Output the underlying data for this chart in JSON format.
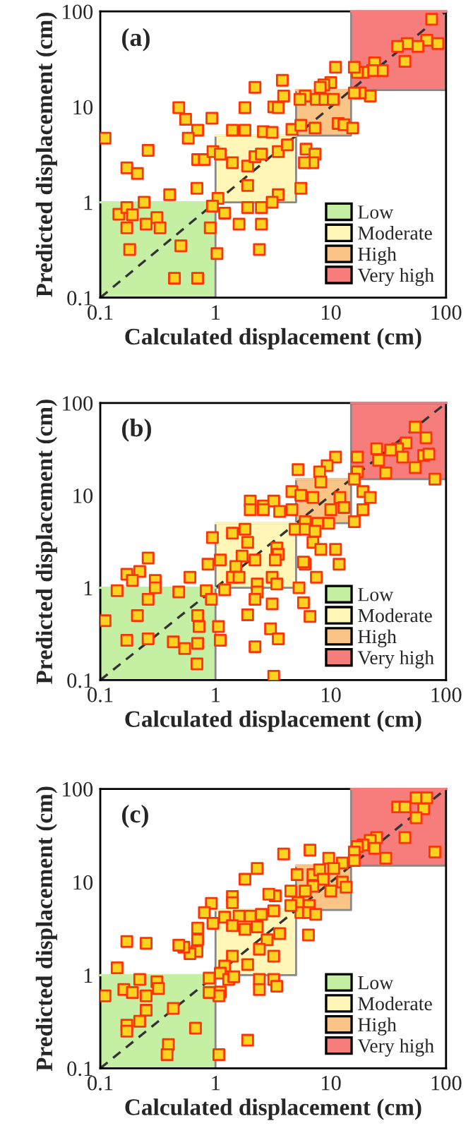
{
  "chart_data": [
    {
      "type": "scatter",
      "xlabel": "Calculated displacement (cm)",
      "ylabel": "Predicted displacement (cm)",
      "annotations": [
        "(a)"
      ],
      "log": "xy",
      "xlim": [
        0.1,
        100
      ],
      "ylim": [
        0.1,
        100
      ],
      "xticks": [
        0.1,
        1,
        10,
        100
      ],
      "yticks": [
        0.1,
        1,
        10,
        100
      ],
      "grid": false,
      "legend": "bottom right",
      "marker": "square",
      "series": [
        {
          "color": "#ffd21f",
          "x": [
            75,
            85,
            68,
            57,
            46,
            38,
            44,
            24,
            28,
            23,
            19,
            17,
            16,
            22,
            18,
            16,
            11,
            10,
            8.7,
            8.1,
            6,
            5.4,
            7.5,
            8.9,
            10.5,
            3.8,
            2.2,
            3.9,
            3.2,
            3.5,
            1.8,
            0.48,
            0.93,
            0.55,
            0.7,
            0.58,
            0.11,
            0.26,
            0.17,
            0.21,
            0.4,
            0.24,
            0.69,
            0.7,
            0.8,
            0.95,
            1.1,
            1.4,
            1.8,
            2.6,
            3.1,
            4.6,
            5.5,
            7.3,
            11.6,
            13,
            15.5,
            1.4,
            1.9,
            2.2,
            2.5,
            3.5,
            4.2,
            6.1,
            7.3,
            7,
            5.5,
            3.5,
            1.9,
            1.05,
            1.2,
            1.9,
            2.5,
            3.1,
            1.6,
            2.5,
            2.4,
            1.03,
            5.9,
            0.145,
            0.17,
            0.19,
            0.31,
            0.25,
            0.33,
            0.17,
            0.5,
            0.9,
            0.94,
            0.18,
            0.44,
            0.7
          ],
          "values": [
            83,
            46,
            50,
            43,
            46,
            43,
            30,
            29,
            24,
            24,
            23,
            23,
            26,
            13,
            14,
            14,
            26,
            18,
            17,
            16,
            13,
            12,
            12,
            12,
            12,
            19,
            16,
            13,
            10,
            9.8,
            9.8,
            9.8,
            7.6,
            7.4,
            5.7,
            4.7,
            4.7,
            3.5,
            2.3,
            2,
            1.2,
            1,
            1.4,
            2.8,
            2.8,
            3.4,
            3.2,
            5.7,
            5.7,
            5.5,
            5.4,
            5.8,
            6.4,
            6,
            6.7,
            6.5,
            6,
            2.6,
            2.4,
            3,
            3.2,
            3.4,
            4,
            3.6,
            3.2,
            2.6,
            1.4,
            1.2,
            1.5,
            1.1,
            0.77,
            0.88,
            0.88,
            1,
            0.59,
            0.59,
            0.32,
            0.29,
            2.6,
            0.75,
            0.88,
            0.74,
            0.69,
            0.59,
            0.54,
            0.54,
            0.35,
            0.54,
            0.91,
            0.32,
            0.16,
            0.16
          ]
        },
        {
          "type": "line",
          "name": "Low",
          "color": "#c5f0a4",
          "marker": "none",
          "x": [
            0.1,
            1
          ],
          "lower": [
            0.1,
            0.1
          ],
          "upper": [
            1,
            1
          ],
          "values": [
            1,
            1
          ]
        },
        {
          "type": "line",
          "name": "Moderate",
          "color": "#fff6b8",
          "marker": "none",
          "x": [
            1,
            5
          ],
          "lower": [
            1,
            1
          ],
          "upper": [
            5,
            5
          ],
          "values": [
            5,
            5
          ]
        },
        {
          "type": "line",
          "name": "High",
          "color": "#f9c486",
          "marker": "none",
          "x": [
            5,
            15
          ],
          "lower": [
            5,
            5
          ],
          "upper": [
            15,
            15
          ],
          "values": [
            15,
            15
          ]
        },
        {
          "type": "line",
          "name": "Very high",
          "color": "#f77d7d",
          "marker": "none",
          "x": [
            15,
            100
          ],
          "lower": [
            15,
            15
          ],
          "upper": [
            100,
            100
          ],
          "values": [
            100,
            100
          ]
        },
        {
          "type": "line",
          "color": "#333333",
          "marker": "none",
          "line_style": "dashed",
          "x": [
            0.1,
            100
          ],
          "values": [
            0.1,
            100
          ]
        }
      ]
    },
    {
      "type": "scatter",
      "xlabel": "Calculated displacement (cm)",
      "ylabel": "Predicted displacement (cm)",
      "annotations": [
        "(b)"
      ],
      "log": "xy",
      "xlim": [
        0.1,
        100
      ],
      "ylim": [
        0.1,
        100
      ],
      "xticks": [
        0.1,
        1,
        10,
        100
      ],
      "yticks": [
        0.1,
        1,
        10,
        100
      ],
      "grid": false,
      "legend": "bottom right",
      "marker": "square",
      "series": [
        {
          "color": "#ffd21f",
          "x": [
            54,
            67,
            45,
            38,
            42,
            33,
            25,
            17,
            26,
            30,
            54,
            64,
            71,
            80,
            17,
            16,
            11,
            9.3,
            8,
            5.2,
            19,
            22,
            19,
            16,
            8.2,
            4.6,
            7,
            5.5,
            12,
            13,
            10,
            9.6,
            7.7,
            6,
            2,
            2.6,
            3.2,
            2.6,
            3.6,
            4.6,
            2,
            0.94,
            1.4,
            1.8,
            1.9,
            1.7,
            2.2,
            3.4,
            3.5,
            3.3,
            4.9,
            6,
            7.3,
            7,
            8.2,
            11,
            11.8,
            6,
            7.5,
            5.8,
            1.1,
            0.86,
            1.5,
            1.4,
            1.6,
            2.3,
            3.1,
            3.4,
            1.2,
            2.3,
            2.2,
            3.1,
            5.3,
            5.8,
            6.6,
            1.9,
            1.06,
            1.1,
            3,
            3.5,
            2.2,
            3.2,
            0.26,
            0.22,
            0.17,
            0.19,
            0.3,
            0.6,
            0.83,
            0.14,
            0.3,
            0.48,
            0.92,
            0.26,
            0.11,
            0.21,
            0.7,
            0.72,
            0.17,
            0.26,
            0.43,
            0.54,
            0.7,
            0.69
          ],
          "values": [
            55,
            42,
            37,
            32,
            26,
            31,
            32,
            26,
            24,
            17.5,
            20,
            27,
            28,
            15,
            18,
            15,
            26,
            21,
            18,
            19,
            11,
            9.5,
            7,
            5.2,
            14,
            11,
            9.5,
            10,
            9.5,
            7.4,
            7,
            5,
            5,
            5.2,
            8.7,
            7.7,
            8.7,
            7,
            6.7,
            7,
            7,
            3.5,
            3.9,
            4.3,
            3.1,
            2.2,
            2,
            2.7,
            2.3,
            2,
            4.3,
            4.3,
            4.1,
            3.1,
            2.6,
            2.6,
            1.8,
            1.8,
            1.3,
            1.9,
            2,
            1.8,
            1.7,
            1.3,
            1.3,
            1.1,
            1.3,
            1.1,
            0.95,
            0.9,
            0.75,
            0.67,
            1,
            0.69,
            0.49,
            0.51,
            0.38,
            0.27,
            0.36,
            0.28,
            0.23,
            0.11,
            2.1,
            1.5,
            1.4,
            1.2,
            1.2,
            1.3,
            0.93,
            0.93,
            1,
            0.9,
            0.75,
            0.75,
            0.44,
            0.5,
            0.5,
            0.38,
            0.27,
            0.28,
            0.26,
            0.22,
            0.25,
            0.15
          ]
        },
        {
          "type": "line",
          "name": "Low",
          "color": "#c5f0a4",
          "marker": "none",
          "x": [
            0.1,
            1
          ],
          "lower": [
            0.1,
            0.1
          ],
          "upper": [
            1,
            1
          ],
          "values": [
            1,
            1
          ]
        },
        {
          "type": "line",
          "name": "Moderate",
          "color": "#fff6b8",
          "marker": "none",
          "x": [
            1,
            5
          ],
          "lower": [
            1,
            1
          ],
          "upper": [
            5,
            5
          ],
          "values": [
            5,
            5
          ]
        },
        {
          "type": "line",
          "name": "High",
          "color": "#f9c486",
          "marker": "none",
          "x": [
            5,
            15
          ],
          "lower": [
            5,
            5
          ],
          "upper": [
            15,
            15
          ],
          "values": [
            15,
            15
          ]
        },
        {
          "type": "line",
          "name": "Very high",
          "color": "#f77d7d",
          "marker": "none",
          "x": [
            15,
            100
          ],
          "lower": [
            15,
            15
          ],
          "upper": [
            100,
            100
          ],
          "values": [
            100,
            100
          ]
        },
        {
          "type": "line",
          "color": "#333333",
          "marker": "none",
          "line_style": "dashed",
          "x": [
            0.1,
            100
          ],
          "values": [
            0.1,
            100
          ]
        }
      ]
    },
    {
      "type": "scatter",
      "xlabel": "Calculated displacement (cm)",
      "ylabel": "Predicted displacement (cm)",
      "annotations": [
        "(c)"
      ],
      "log": "xy",
      "xlim": [
        0.1,
        100
      ],
      "ylim": [
        0.1,
        100
      ],
      "xticks": [
        0.1,
        1,
        10,
        100
      ],
      "yticks": [
        0.1,
        1,
        10,
        100
      ],
      "grid": false,
      "legend": "bottom right",
      "marker": "square",
      "series": [
        {
          "color": "#ffd21f",
          "x": [
            55,
            68,
            38,
            44,
            64,
            55,
            44,
            25,
            22,
            19,
            17,
            24,
            30,
            80,
            16,
            16,
            12.6,
            9.6,
            6.6,
            3.9,
            5.1,
            7,
            8,
            10.6,
            8.6,
            12.6,
            13.6,
            10,
            7,
            6,
            4.5,
            5.2,
            6.5,
            5.5,
            6.4,
            7.4,
            6.4,
            4.5,
            3.3,
            2.9,
            1.8,
            2.3,
            1.4,
            1.4,
            0.92,
            0.8,
            0.95,
            1.2,
            1.6,
            2,
            2.5,
            3.2,
            1.4,
            1.8,
            2.3,
            2.8,
            3.6,
            2.4,
            3.2,
            1.9,
            1.4,
            1.2,
            1.1,
            0.7,
            0.7,
            0.69,
            0.6,
            0.53,
            0.48,
            0.25,
            0.17,
            0.14,
            1.3,
            1.44,
            2.4,
            2.4,
            3.2,
            3.4,
            1.1,
            1.07,
            0.88,
            0.88,
            1.9,
            1.07,
            0.11,
            0.16,
            0.19,
            0.22,
            0.25,
            0.31,
            0.32,
            0.25,
            0.22,
            0.17,
            0.17,
            0.43,
            0.67,
            0.39,
            0.38
          ],
          "values": [
            80,
            80,
            64,
            64,
            61,
            49,
            30,
            30,
            28,
            25,
            24,
            23,
            18,
            21,
            21,
            17,
            16,
            18,
            22,
            20,
            12,
            12,
            13.5,
            14,
            10.7,
            10,
            8.8,
            8,
            9,
            8,
            8,
            6,
            5.6,
            4.7,
            4.7,
            4.5,
            2.7,
            5.6,
            7.1,
            7.4,
            10.7,
            14,
            7,
            6,
            5.9,
            4.7,
            3.6,
            4.2,
            4.3,
            4.3,
            4.5,
            4.9,
            3.4,
            3.1,
            3.3,
            2.4,
            2.8,
            1.9,
            1.6,
            1.3,
            1.6,
            1.25,
            1.05,
            3.2,
            2.4,
            1.8,
            1.7,
            2,
            2.1,
            2.2,
            2.3,
            1.2,
            0.9,
            0.96,
            0.9,
            0.7,
            0.9,
            0.76,
            0.66,
            0.6,
            0.93,
            0.65,
            0.2,
            0.14,
            0.6,
            0.7,
            0.65,
            0.9,
            0.6,
            0.85,
            0.72,
            0.42,
            0.32,
            0.29,
            0.25,
            0.44,
            0.27,
            0.18,
            0.14
          ]
        },
        {
          "type": "line",
          "name": "Low",
          "color": "#c5f0a4",
          "marker": "none",
          "x": [
            0.1,
            1
          ],
          "lower": [
            0.1,
            0.1
          ],
          "upper": [
            1,
            1
          ],
          "values": [
            1,
            1
          ]
        },
        {
          "type": "line",
          "name": "Moderate",
          "color": "#fff6b8",
          "marker": "none",
          "x": [
            1,
            5
          ],
          "lower": [
            1,
            1
          ],
          "upper": [
            5,
            5
          ],
          "values": [
            5,
            5
          ]
        },
        {
          "type": "line",
          "name": "High",
          "color": "#f9c486",
          "marker": "none",
          "x": [
            5,
            15
          ],
          "lower": [
            5,
            5
          ],
          "upper": [
            15,
            15
          ],
          "values": [
            15,
            15
          ]
        },
        {
          "type": "line",
          "name": "Very high",
          "color": "#f77d7d",
          "marker": "none",
          "x": [
            15,
            100
          ],
          "lower": [
            15,
            15
          ],
          "upper": [
            100,
            100
          ],
          "values": [
            100,
            100
          ]
        },
        {
          "type": "line",
          "color": "#333333",
          "marker": "none",
          "line_style": "dashed",
          "x": [
            0.1,
            100
          ],
          "values": [
            0.1,
            100
          ]
        }
      ]
    }
  ]
}
